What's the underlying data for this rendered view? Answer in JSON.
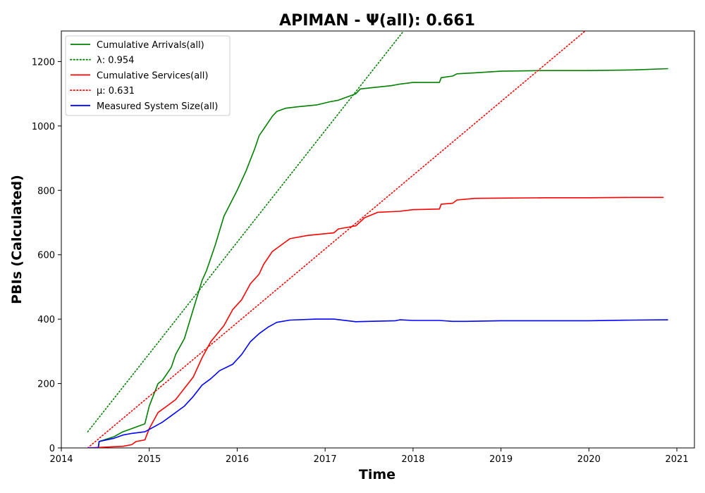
{
  "chart_data": {
    "type": "line",
    "title": "APIMAN -  Ψ(all): 0.661",
    "xlabel": "Time",
    "ylabel": "PBIs (Calculated)",
    "xlim": [
      2014.0,
      2021.2
    ],
    "ylim": [
      0,
      1295
    ],
    "x_ticks": [
      2014,
      2015,
      2016,
      2017,
      2018,
      2019,
      2020,
      2021
    ],
    "x_tick_labels": [
      "2014",
      "2015",
      "2016",
      "2017",
      "2018",
      "2019",
      "2020",
      "2021"
    ],
    "y_ticks": [
      0,
      200,
      400,
      600,
      800,
      1000,
      1200
    ],
    "y_tick_labels": [
      "0",
      "200",
      "400",
      "600",
      "800",
      "1000",
      "1200"
    ],
    "grid": false,
    "legend_position": "top-left",
    "series": [
      {
        "name": "Cumulative Arrivals(all)",
        "color": "#008000",
        "style": "solid",
        "x": [
          2014.3,
          2014.42,
          2014.43,
          2014.6,
          2014.7,
          2014.8,
          2014.95,
          2015.0,
          2015.1,
          2015.15,
          2015.25,
          2015.3,
          2015.4,
          2015.5,
          2015.6,
          2015.65,
          2015.75,
          2015.85,
          2016.0,
          2016.1,
          2016.2,
          2016.25,
          2016.3,
          2016.4,
          2016.45,
          2016.55,
          2016.7,
          2016.9,
          2017.05,
          2017.15,
          2017.35,
          2017.4,
          2017.5,
          2017.75,
          2017.85,
          2018.0,
          2018.3,
          2018.32,
          2018.45,
          2018.5,
          2018.7,
          2019.0,
          2019.5,
          2020.0,
          2020.5,
          2020.9
        ],
        "y": [
          0,
          0,
          20,
          35,
          50,
          60,
          75,
          130,
          200,
          210,
          250,
          290,
          340,
          430,
          520,
          550,
          630,
          720,
          800,
          860,
          930,
          970,
          990,
          1030,
          1045,
          1055,
          1060,
          1065,
          1075,
          1080,
          1100,
          1115,
          1118,
          1125,
          1130,
          1135,
          1135,
          1150,
          1155,
          1162,
          1165,
          1170,
          1172,
          1172,
          1174,
          1178
        ]
      },
      {
        "name": "λ: 0.954",
        "color": "#008000",
        "style": "dotted",
        "x": [
          2014.3,
          2017.95
        ],
        "y": [
          50,
          1315
        ]
      },
      {
        "name": "Cumulative Services(all)",
        "color": "#ff0000",
        "style": "solid",
        "x": [
          2014.3,
          2014.7,
          2014.8,
          2014.85,
          2014.95,
          2015.0,
          2015.1,
          2015.2,
          2015.3,
          2015.4,
          2015.5,
          2015.6,
          2015.7,
          2015.85,
          2015.95,
          2016.05,
          2016.15,
          2016.25,
          2016.3,
          2016.4,
          2016.5,
          2016.6,
          2016.8,
          2017.1,
          2017.15,
          2017.35,
          2017.45,
          2017.6,
          2017.85,
          2018.0,
          2018.3,
          2018.32,
          2018.45,
          2018.5,
          2018.7,
          2019.0,
          2019.5,
          2020.0,
          2020.5,
          2020.85
        ],
        "y": [
          0,
          5,
          10,
          20,
          25,
          60,
          110,
          130,
          150,
          185,
          220,
          280,
          330,
          380,
          430,
          460,
          510,
          540,
          570,
          610,
          630,
          650,
          660,
          668,
          680,
          690,
          715,
          732,
          735,
          740,
          742,
          757,
          760,
          770,
          775,
          776,
          777,
          777,
          778,
          778
        ]
      },
      {
        "name": "μ: 0.631",
        "color": "#ff0000",
        "style": "dotted",
        "x": [
          2014.3,
          2019.98
        ],
        "y": [
          0,
          1300
        ]
      },
      {
        "name": "Measured System Size(all)",
        "color": "#0000ff",
        "style": "solid",
        "x": [
          2014.3,
          2014.42,
          2014.43,
          2014.6,
          2014.7,
          2014.8,
          2014.95,
          2015.05,
          2015.15,
          2015.25,
          2015.4,
          2015.5,
          2015.6,
          2015.7,
          2015.8,
          2015.95,
          2016.05,
          2016.15,
          2016.25,
          2016.35,
          2016.45,
          2016.6,
          2016.9,
          2017.1,
          2017.35,
          2017.5,
          2017.8,
          2017.85,
          2018.0,
          2018.3,
          2018.45,
          2018.6,
          2019.0,
          2019.5,
          2020.0,
          2020.5,
          2020.9
        ],
        "y": [
          0,
          0,
          20,
          30,
          40,
          45,
          50,
          65,
          80,
          100,
          130,
          160,
          195,
          215,
          240,
          260,
          290,
          330,
          355,
          375,
          390,
          397,
          400,
          400,
          392,
          393,
          395,
          398,
          396,
          396,
          393,
          393,
          395,
          395,
          395,
          397,
          398
        ]
      }
    ]
  }
}
